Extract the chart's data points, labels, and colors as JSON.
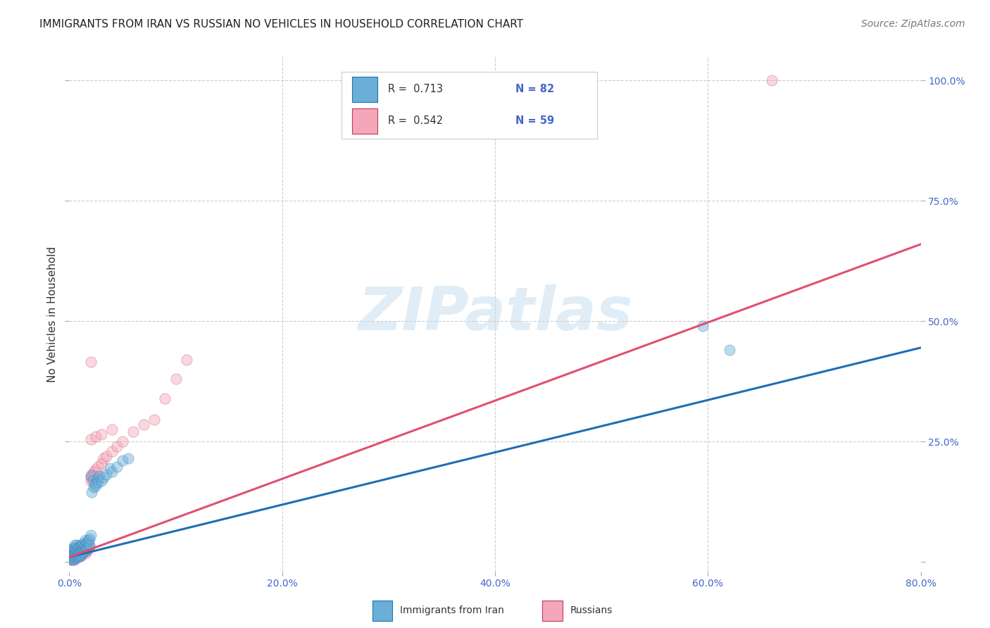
{
  "title": "IMMIGRANTS FROM IRAN VS RUSSIAN NO VEHICLES IN HOUSEHOLD CORRELATION CHART",
  "source": "Source: ZipAtlas.com",
  "ylabel": "No Vehicles in Household",
  "xlim": [
    0,
    0.8
  ],
  "ylim": [
    -0.02,
    1.05
  ],
  "xticks": [
    0.0,
    0.2,
    0.4,
    0.6,
    0.8
  ],
  "yticks": [
    0.0,
    0.25,
    0.5,
    0.75,
    1.0
  ],
  "xticklabels": [
    "0.0%",
    "20.0%",
    "40.0%",
    "60.0%",
    "80.0%"
  ],
  "yticklabels_right": [
    "",
    "25.0%",
    "50.0%",
    "75.0%",
    "100.0%"
  ],
  "watermark": "ZIPatlas",
  "scatter_iran": {
    "color": "#6baed6",
    "edge_color": "#2171b5",
    "size": 120,
    "alpha": 0.45,
    "x": [
      0.001,
      0.001,
      0.001,
      0.002,
      0.002,
      0.002,
      0.002,
      0.003,
      0.003,
      0.003,
      0.003,
      0.004,
      0.004,
      0.004,
      0.004,
      0.004,
      0.005,
      0.005,
      0.005,
      0.005,
      0.005,
      0.006,
      0.006,
      0.006,
      0.006,
      0.007,
      0.007,
      0.007,
      0.007,
      0.008,
      0.008,
      0.008,
      0.008,
      0.009,
      0.009,
      0.009,
      0.01,
      0.01,
      0.01,
      0.01,
      0.011,
      0.011,
      0.011,
      0.012,
      0.012,
      0.012,
      0.013,
      0.013,
      0.013,
      0.014,
      0.014,
      0.015,
      0.015,
      0.015,
      0.016,
      0.016,
      0.017,
      0.017,
      0.018,
      0.018,
      0.019,
      0.019,
      0.02,
      0.02,
      0.021,
      0.022,
      0.023,
      0.024,
      0.025,
      0.026,
      0.027,
      0.028,
      0.03,
      0.032,
      0.035,
      0.038,
      0.04,
      0.045,
      0.05,
      0.055,
      0.595,
      0.62
    ],
    "y": [
      0.008,
      0.012,
      0.018,
      0.005,
      0.015,
      0.02,
      0.025,
      0.008,
      0.012,
      0.018,
      0.025,
      0.005,
      0.01,
      0.015,
      0.02,
      0.03,
      0.008,
      0.012,
      0.018,
      0.025,
      0.035,
      0.01,
      0.015,
      0.02,
      0.03,
      0.012,
      0.018,
      0.025,
      0.035,
      0.01,
      0.015,
      0.022,
      0.03,
      0.015,
      0.02,
      0.03,
      0.012,
      0.018,
      0.025,
      0.035,
      0.015,
      0.022,
      0.032,
      0.018,
      0.025,
      0.035,
      0.02,
      0.028,
      0.038,
      0.022,
      0.032,
      0.025,
      0.035,
      0.045,
      0.028,
      0.038,
      0.03,
      0.042,
      0.032,
      0.045,
      0.035,
      0.048,
      0.18,
      0.055,
      0.145,
      0.168,
      0.155,
      0.162,
      0.158,
      0.172,
      0.165,
      0.178,
      0.168,
      0.175,
      0.182,
      0.195,
      0.188,
      0.198,
      0.21,
      0.215,
      0.49,
      0.44
    ]
  },
  "scatter_russia": {
    "color": "#f4a7b9",
    "edge_color": "#c0395a",
    "size": 120,
    "alpha": 0.45,
    "x": [
      0.001,
      0.001,
      0.002,
      0.002,
      0.003,
      0.003,
      0.003,
      0.004,
      0.004,
      0.004,
      0.005,
      0.005,
      0.005,
      0.006,
      0.006,
      0.006,
      0.007,
      0.007,
      0.008,
      0.008,
      0.009,
      0.009,
      0.01,
      0.01,
      0.011,
      0.012,
      0.013,
      0.014,
      0.015,
      0.015,
      0.016,
      0.017,
      0.018,
      0.019,
      0.02,
      0.02,
      0.021,
      0.022,
      0.023,
      0.025,
      0.027,
      0.03,
      0.032,
      0.035,
      0.04,
      0.045,
      0.05,
      0.06,
      0.07,
      0.08,
      0.02,
      0.025,
      0.03,
      0.04,
      0.09,
      0.1,
      0.11,
      0.66,
      0.02
    ],
    "y": [
      0.005,
      0.01,
      0.008,
      0.015,
      0.005,
      0.012,
      0.02,
      0.008,
      0.015,
      0.025,
      0.005,
      0.012,
      0.02,
      0.008,
      0.015,
      0.025,
      0.01,
      0.018,
      0.012,
      0.022,
      0.015,
      0.025,
      0.012,
      0.022,
      0.018,
      0.02,
      0.022,
      0.025,
      0.018,
      0.028,
      0.022,
      0.025,
      0.028,
      0.032,
      0.168,
      0.175,
      0.178,
      0.182,
      0.188,
      0.192,
      0.198,
      0.205,
      0.215,
      0.22,
      0.23,
      0.24,
      0.25,
      0.27,
      0.285,
      0.295,
      0.255,
      0.26,
      0.265,
      0.275,
      0.34,
      0.38,
      0.42,
      1.0,
      0.415
    ]
  },
  "trend_iran": {
    "color": "#1f6eb5",
    "x_start": 0.0,
    "x_end": 0.8,
    "y_start": 0.01,
    "y_end": 0.445
  },
  "trend_russia": {
    "color": "#e05070",
    "x_start": 0.0,
    "x_end": 0.8,
    "y_start": 0.01,
    "y_end": 0.66
  },
  "background_color": "#ffffff",
  "grid_color": "#cccccc",
  "title_fontsize": 11,
  "axis_label_fontsize": 11,
  "tick_fontsize": 10,
  "source_fontsize": 10,
  "legend_iran_r": "R =  0.713",
  "legend_iran_n": "N = 82",
  "legend_russia_r": "R =  0.542",
  "legend_russia_n": "N = 59",
  "bottom_legend": [
    {
      "label": "Immigrants from Iran",
      "color": "#6baed6",
      "edge": "#2171b5"
    },
    {
      "label": "Russians",
      "color": "#f4a7b9",
      "edge": "#c0395a"
    }
  ]
}
